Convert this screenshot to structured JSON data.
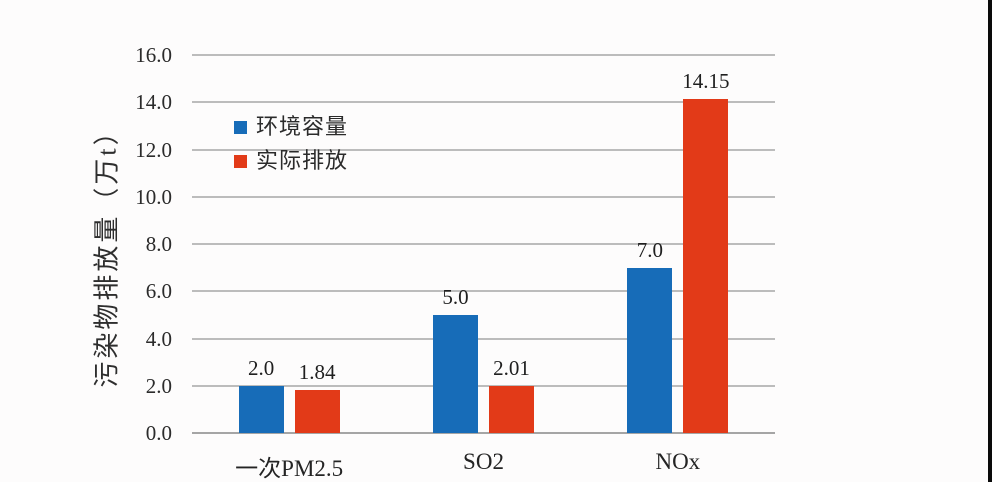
{
  "page": {
    "background": "#fdfcfc",
    "right_edge_artifact_color": "#0a0a0a"
  },
  "chart_data": {
    "type": "bar",
    "title": "",
    "ylabel": "污染物排放量（万t）",
    "xlabel": "",
    "categories": [
      "一次PM2.5",
      "SO2",
      "NOx"
    ],
    "series": [
      {
        "name": "环境容量",
        "color": "#176cb8",
        "values": [
          2.0,
          5.0,
          7.0
        ],
        "value_labels": [
          "2.0",
          "5.0",
          "7.0"
        ]
      },
      {
        "name": "实际排放",
        "color": "#e23a18",
        "values": [
          1.84,
          2.01,
          14.15
        ],
        "value_labels": [
          "1.84",
          "2.01",
          "14.15"
        ]
      }
    ],
    "ylim": [
      0,
      16
    ],
    "ytick_step": 2,
    "ytick_labels": [
      "0.0",
      "2.0",
      "4.0",
      "6.0",
      "8.0",
      "10.0",
      "12.0",
      "14.0",
      "16.0"
    ],
    "grid": true,
    "gridline_color": "#bcbcbc",
    "legend_position": "upper-left-inside",
    "legend": [
      "环境容量",
      "实际排放"
    ]
  }
}
